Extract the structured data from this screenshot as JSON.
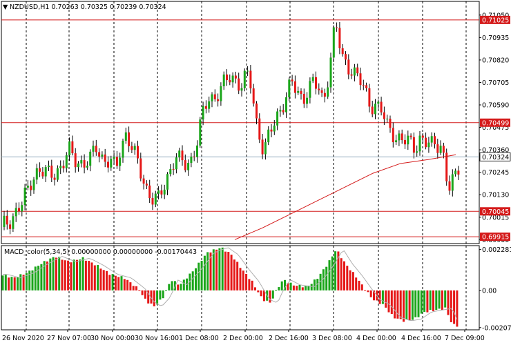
{
  "header": {
    "arrow": "▼",
    "text": "NZDUSD,H1  0.70263 0.70325 0.70239 0.70324"
  },
  "macd_header": {
    "text": "MACD_color(5,34,5) 0.00000000 0.00000000 -0.00170443"
  },
  "colors": {
    "bull": "#1aa51a",
    "bear": "#e51717",
    "level_line": "#d41a1a",
    "ma_line": "#d41a1a",
    "current_line": "#8eaabb",
    "signal_line": "#b0b0b0",
    "grid": "#000000"
  },
  "chart_data": [
    {
      "type": "candlestick",
      "symbol": "NZDUSD",
      "timeframe": "H1",
      "ohlc": {
        "open": 0.70263,
        "high": 0.70325,
        "low": 0.70239,
        "close": 0.70324
      },
      "ylim": [
        0.6988,
        0.7112
      ],
      "y_ticks": [
        "0.71050",
        "0.70935",
        "0.70820",
        "0.70705",
        "0.70590",
        "0.70475",
        "0.70360",
        "0.70245",
        "0.70130",
        "0.70015",
        "0.69900"
      ],
      "x_ticks": [
        "26 Nov 2020",
        "27 Nov 07:00",
        "30 Nov 00:00",
        "30 Nov 16:00",
        "1 Dec 08:00",
        "2 Dec 00:00",
        "2 Dec 16:00",
        "3 Dec 08:00",
        "4 Dec 00:00",
        "4 Dec 16:00",
        "7 Dec 09:00"
      ],
      "horizontal_levels": [
        {
          "value": 0.71025,
          "label": "0.71025"
        },
        {
          "value": 0.70499,
          "label": "0.70499"
        },
        {
          "value": 0.70045,
          "label": "0.70045"
        },
        {
          "value": 0.69915,
          "label": "0.69915"
        }
      ],
      "current_price": {
        "value": 0.70324,
        "label": "0.70324"
      },
      "close_path": [
        [
          0,
          0.6995
        ],
        [
          8,
          0.6998
        ],
        [
          16,
          0.7001
        ],
        [
          24,
          0.7005
        ],
        [
          32,
          0.7008
        ],
        [
          40,
          0.7015
        ],
        [
          48,
          0.7023
        ],
        [
          56,
          0.7026
        ],
        [
          64,
          0.7024
        ],
        [
          72,
          0.7023
        ],
        [
          80,
          0.7025
        ],
        [
          90,
          0.7028
        ],
        [
          100,
          0.7035
        ],
        [
          110,
          0.7031
        ],
        [
          120,
          0.7029
        ],
        [
          130,
          0.703
        ],
        [
          140,
          0.7038
        ],
        [
          150,
          0.7031
        ],
        [
          160,
          0.703
        ],
        [
          168,
          0.7025
        ],
        [
          175,
          0.7038
        ],
        [
          183,
          0.7045
        ],
        [
          190,
          0.7038
        ],
        [
          198,
          0.703
        ],
        [
          206,
          0.7022
        ],
        [
          214,
          0.7015
        ],
        [
          222,
          0.7011
        ],
        [
          230,
          0.701
        ],
        [
          238,
          0.7018
        ],
        [
          246,
          0.7026
        ],
        [
          254,
          0.7033
        ],
        [
          262,
          0.7029
        ],
        [
          270,
          0.7028
        ],
        [
          278,
          0.7032
        ],
        [
          286,
          0.7042
        ],
        [
          294,
          0.7054
        ],
        [
          302,
          0.7062
        ],
        [
          310,
          0.7063
        ],
        [
          318,
          0.7067
        ],
        [
          326,
          0.707
        ],
        [
          334,
          0.7073
        ],
        [
          342,
          0.7072
        ],
        [
          350,
          0.707
        ],
        [
          358,
          0.7074
        ],
        [
          364,
          0.7068
        ],
        [
          370,
          0.7052
        ],
        [
          376,
          0.7044
        ],
        [
          382,
          0.7036
        ],
        [
          390,
          0.7043
        ],
        [
          398,
          0.705
        ],
        [
          406,
          0.7057
        ],
        [
          414,
          0.7064
        ],
        [
          422,
          0.707
        ],
        [
          430,
          0.7065
        ],
        [
          438,
          0.7062
        ],
        [
          446,
          0.7068
        ],
        [
          454,
          0.707
        ],
        [
          462,
          0.7066
        ],
        [
          468,
          0.706
        ],
        [
          474,
          0.7072
        ],
        [
          480,
          0.7086
        ],
        [
          486,
          0.7102
        ],
        [
          490,
          0.7092
        ],
        [
          496,
          0.7082
        ],
        [
          504,
          0.708
        ],
        [
          512,
          0.7076
        ],
        [
          520,
          0.7072
        ],
        [
          528,
          0.7066
        ],
        [
          536,
          0.706
        ],
        [
          544,
          0.7059
        ],
        [
          552,
          0.7056
        ],
        [
          560,
          0.7048
        ],
        [
          568,
          0.7046
        ],
        [
          576,
          0.7042
        ],
        [
          584,
          0.704
        ],
        [
          592,
          0.704
        ],
        [
          600,
          0.7038
        ],
        [
          608,
          0.7042
        ],
        [
          616,
          0.7039
        ],
        [
          624,
          0.7038
        ],
        [
          632,
          0.704
        ],
        [
          640,
          0.7039
        ],
        [
          646,
          0.7022
        ],
        [
          650,
          0.7015
        ],
        [
          654,
          0.7018
        ],
        [
          660,
          0.7023
        ],
        [
          668,
          0.70324
        ]
      ],
      "ma_path": [
        [
          340,
          0.699
        ],
        [
          380,
          0.6996
        ],
        [
          420,
          0.7003
        ],
        [
          460,
          0.701
        ],
        [
          500,
          0.7017
        ],
        [
          540,
          0.7024
        ],
        [
          580,
          0.7029
        ],
        [
          620,
          0.7031
        ],
        [
          660,
          0.70335
        ]
      ]
    },
    {
      "type": "histogram",
      "indicator": "MACD_color(5,34,5)",
      "values_text": [
        "0.00000000",
        "0.00000000",
        "-0.00170443"
      ],
      "ylim": [
        -0.0022,
        0.0025
      ],
      "y_ticks": [
        "0.0022817",
        "0.00",
        "-0.002077"
      ],
      "histogram_path": [
        [
          0,
          0.0009
        ],
        [
          20,
          0.0007
        ],
        [
          40,
          0.001
        ],
        [
          60,
          0.0015
        ],
        [
          80,
          0.0019
        ],
        [
          100,
          0.0016
        ],
        [
          120,
          0.0018
        ],
        [
          140,
          0.0014
        ],
        [
          160,
          0.0009
        ],
        [
          180,
          0.0007
        ],
        [
          200,
          0.0001
        ],
        [
          212,
          -0.0006
        ],
        [
          224,
          -0.0009
        ],
        [
          236,
          -0.0004
        ],
        [
          248,
          0.0006
        ],
        [
          260,
          0.0003
        ],
        [
          280,
          0.0011
        ],
        [
          300,
          0.0021
        ],
        [
          320,
          0.0024
        ],
        [
          335,
          0.002
        ],
        [
          350,
          0.0012
        ],
        [
          365,
          0.0005
        ],
        [
          380,
          -0.0005
        ],
        [
          392,
          -0.0007
        ],
        [
          400,
          0.0
        ],
        [
          410,
          0.0006
        ],
        [
          425,
          0.0003
        ],
        [
          445,
          0.0002
        ],
        [
          460,
          0.0007
        ],
        [
          475,
          0.0015
        ],
        [
          487,
          0.0023
        ],
        [
          500,
          0.0015
        ],
        [
          515,
          0.0008
        ],
        [
          528,
          0.0001
        ],
        [
          540,
          -0.0005
        ],
        [
          555,
          -0.0008
        ],
        [
          570,
          -0.0015
        ],
        [
          585,
          -0.0017
        ],
        [
          600,
          -0.0016
        ],
        [
          615,
          -0.0012
        ],
        [
          630,
          -0.0011
        ],
        [
          645,
          -0.001
        ],
        [
          655,
          -0.0019
        ],
        [
          665,
          -0.002
        ]
      ]
    }
  ]
}
